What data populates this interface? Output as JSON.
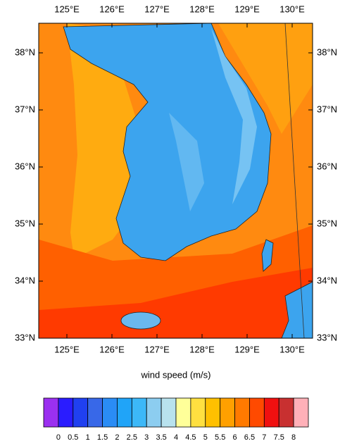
{
  "map": {
    "lon_ticks": [
      "125°E",
      "126°E",
      "127°E",
      "128°E",
      "129°E",
      "130°E"
    ],
    "lat_ticks": [
      "38°N",
      "37°N",
      "36°N",
      "35°N",
      "34°N",
      "33°N"
    ],
    "xlabel": "wind speed (m/s)",
    "colorbar": {
      "labels": [
        0,
        0.5,
        1,
        1.5,
        2,
        2.5,
        3,
        3.5,
        4,
        4.5,
        5,
        5.5,
        6,
        6.5,
        7,
        7.5,
        8
      ],
      "colors": [
        "#9b30f0",
        "#2a1cff",
        "#2040f0",
        "#3868e8",
        "#2a8cf5",
        "#20a4f8",
        "#3cb8f8",
        "#8ccdf0",
        "#b8e2ee",
        "#ffff99",
        "#ffe040",
        "#ffc000",
        "#ffa000",
        "#ff7a00",
        "#ff4a00",
        "#f01010",
        "#c83030",
        "#ffb0b8"
      ]
    }
  }
}
